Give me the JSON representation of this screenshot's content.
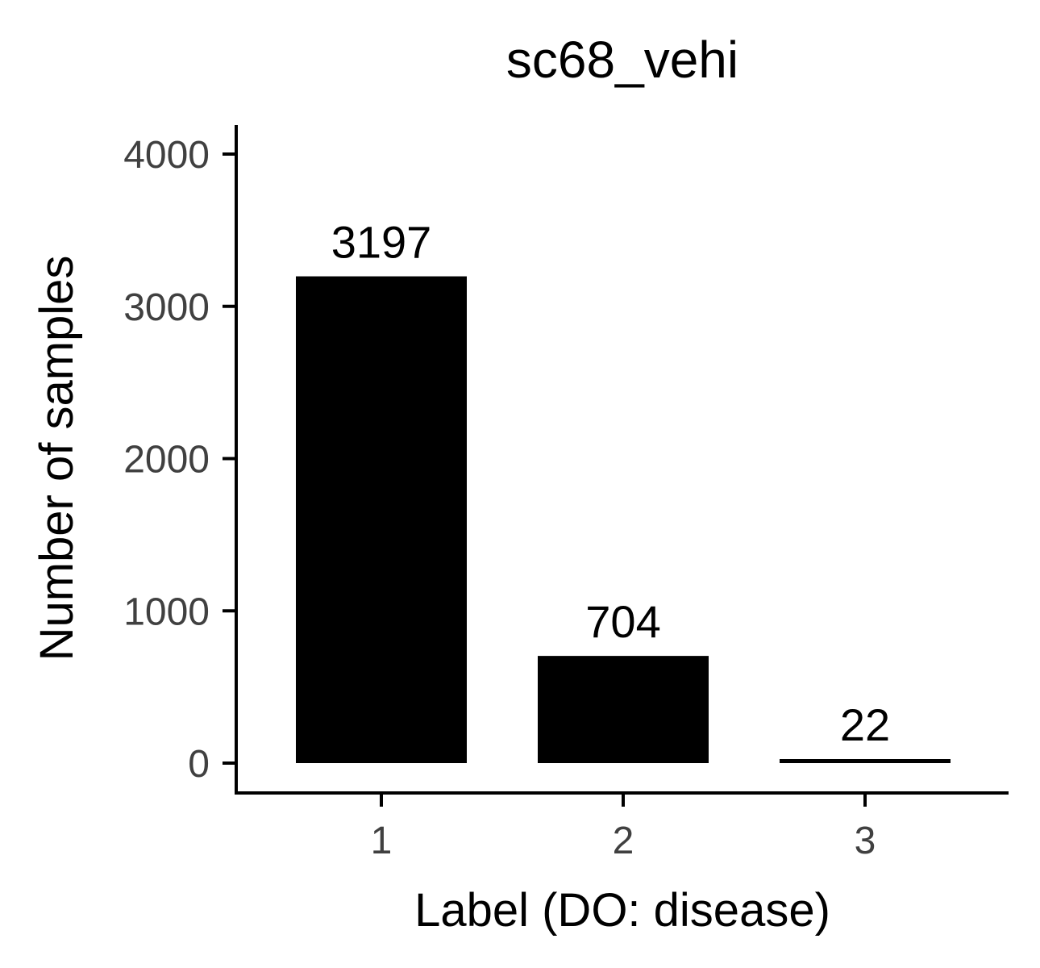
{
  "chart_data": {
    "type": "bar",
    "title": "sc68_vehi",
    "xlabel": "Label (DO: disease)",
    "ylabel": "Number of samples",
    "categories": [
      "1",
      "2",
      "3"
    ],
    "values": [
      3197,
      704,
      22
    ],
    "data_labels": [
      "3197",
      "704",
      "22"
    ],
    "ylim": [
      0,
      4200
    ],
    "yticks": [
      0,
      1000,
      2000,
      3000,
      4000
    ],
    "ytick_labels": [
      "0",
      "1000",
      "2000",
      "3000",
      "4000"
    ],
    "grid": false,
    "legend": "none",
    "bar_color": "#000000"
  }
}
